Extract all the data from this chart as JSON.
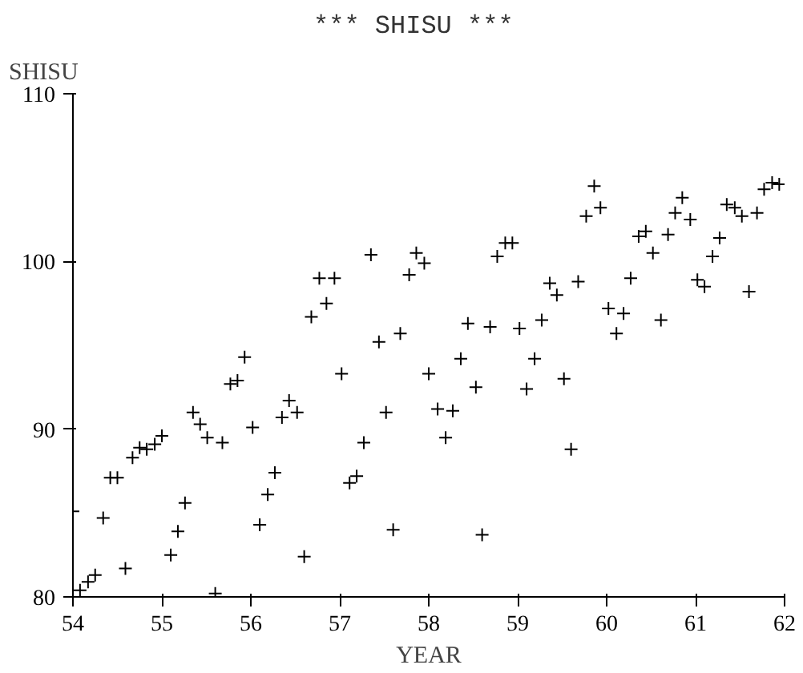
{
  "chart_data": {
    "type": "scatter",
    "title": "***  SHISU  ***",
    "xlabel": "YEAR",
    "ylabel": "SHISU",
    "marker": "cross",
    "grid": false,
    "xlim": [
      54,
      62
    ],
    "ylim": [
      80,
      110
    ],
    "xticks": [
      54,
      55,
      56,
      57,
      58,
      59,
      60,
      61,
      62
    ],
    "yticks": [
      80,
      90,
      100,
      110
    ],
    "series": [
      {
        "color": "#000000",
        "x": [
          54.0,
          54.08,
          54.17,
          54.25,
          54.34,
          54.42,
          54.5,
          54.59,
          54.67,
          54.75,
          54.83,
          54.92,
          55.0,
          55.1,
          55.18,
          55.26,
          55.35,
          55.43,
          55.51,
          55.6,
          55.68,
          55.77,
          55.85,
          55.93,
          56.02,
          56.1,
          56.19,
          56.27,
          56.35,
          56.43,
          56.52,
          56.6,
          56.68,
          56.77,
          56.85,
          56.94,
          57.02,
          57.11,
          57.19,
          57.27,
          57.35,
          57.44,
          57.52,
          57.6,
          57.68,
          57.78,
          57.86,
          57.95,
          58.0,
          58.1,
          58.19,
          58.27,
          58.36,
          58.44,
          58.53,
          58.6,
          58.69,
          58.77,
          58.86,
          58.94,
          59.02,
          59.1,
          59.19,
          59.27,
          59.36,
          59.44,
          59.52,
          59.6,
          59.68,
          59.77,
          59.86,
          59.93,
          60.02,
          60.11,
          60.19,
          60.27,
          60.36,
          60.44,
          60.52,
          60.61,
          60.69,
          60.77,
          60.85,
          60.94,
          61.02,
          61.1,
          61.19,
          61.27,
          61.35,
          61.44,
          61.52,
          61.6,
          61.69,
          61.77,
          61.86,
          61.94
        ],
        "values": [
          85.1,
          80.4,
          80.9,
          81.3,
          84.7,
          87.1,
          87.1,
          81.7,
          88.3,
          88.9,
          88.8,
          89.1,
          89.6,
          82.5,
          83.9,
          85.6,
          91.0,
          90.3,
          89.5,
          80.2,
          89.2,
          92.7,
          92.9,
          94.3,
          90.1,
          84.3,
          86.1,
          87.4,
          90.7,
          91.7,
          91.0,
          82.4,
          96.7,
          99.0,
          97.5,
          99.0,
          93.3,
          86.8,
          87.2,
          89.2,
          100.4,
          95.2,
          91.0,
          84.0,
          95.7,
          99.2,
          100.5,
          99.9,
          93.3,
          91.2,
          89.5,
          91.1,
          94.2,
          96.3,
          92.5,
          83.7,
          96.1,
          100.3,
          101.1,
          101.1,
          96.0,
          92.4,
          94.2,
          96.5,
          98.7,
          98.0,
          93.0,
          88.8,
          98.8,
          102.7,
          104.5,
          103.2,
          97.2,
          95.7,
          96.9,
          99.0,
          101.5,
          101.8,
          100.5,
          96.5,
          101.6,
          102.9,
          103.8,
          102.5,
          98.9,
          98.5,
          100.3,
          101.4,
          103.4,
          103.2,
          102.7,
          98.2,
          102.9,
          104.3,
          104.7,
          104.6
        ]
      }
    ]
  }
}
